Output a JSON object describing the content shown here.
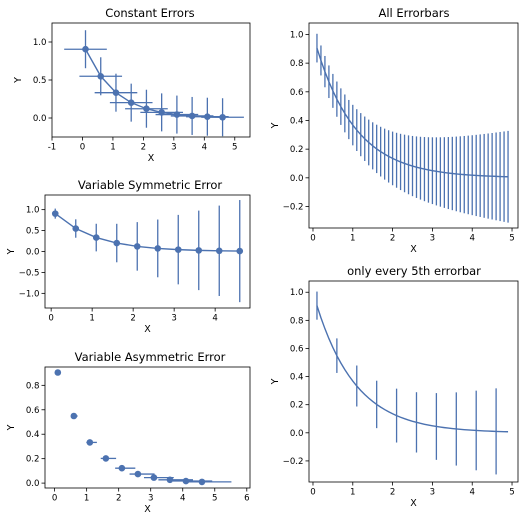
{
  "colors": {
    "series": "#4c72b0",
    "axes": "#000000",
    "background": "#ffffff"
  },
  "chart_data": [
    {
      "type": "errorbar",
      "title": "Constant Errors",
      "xlabel": "X",
      "ylabel": "Y",
      "xlim": [
        -1,
        5.5
      ],
      "ylim": [
        -0.25,
        1.25
      ],
      "xticks": [
        "-1",
        "0",
        "1",
        "2",
        "3",
        "4",
        "5"
      ],
      "yticks": [
        "0.0",
        "0.5",
        "1.0"
      ],
      "marker": "circle",
      "line": true,
      "grid": false,
      "series": [
        {
          "x": [
            0.1,
            0.6,
            1.1,
            1.6,
            2.1,
            2.6,
            3.1,
            3.6,
            4.1,
            4.6
          ],
          "y": [
            0.905,
            0.549,
            0.333,
            0.202,
            0.122,
            0.074,
            0.045,
            0.027,
            0.017,
            0.01
          ],
          "xerr": 0.7,
          "yerr": 0.25
        }
      ]
    },
    {
      "type": "errorbar",
      "title": "All Errorbars",
      "xlabel": "X",
      "ylabel": "Y",
      "xlim": [
        -0.1,
        5.15
      ],
      "ylim": [
        -0.35,
        1.08
      ],
      "xticks": [
        "0",
        "1",
        "2",
        "3",
        "4",
        "5"
      ],
      "yticks": [
        "−0.2",
        "0.0",
        "0.2",
        "0.4",
        "0.6",
        "0.8",
        "1.0"
      ],
      "marker": "none",
      "line": true,
      "grid": false,
      "series": [
        {
          "x_range": [
            0.1,
            4.9
          ],
          "x_step": 0.1,
          "y_formula": "exp(-x)",
          "yerr_range": [
            0.1,
            0.32
          ]
        }
      ]
    },
    {
      "type": "errorbar",
      "title": "Variable Symmetric Error",
      "xlabel": "X",
      "ylabel": "Y",
      "xlim": [
        -0.15,
        4.85
      ],
      "ylim": [
        -1.35,
        1.35
      ],
      "xticks": [
        "0",
        "1",
        "2",
        "3",
        "4"
      ],
      "yticks": [
        "−1.0",
        "−0.5",
        "0.0",
        "0.5",
        "1.0"
      ],
      "marker": "circle",
      "line": true,
      "grid": false,
      "series": [
        {
          "x": [
            0.1,
            0.6,
            1.1,
            1.6,
            2.1,
            2.6,
            3.1,
            3.6,
            4.1,
            4.6
          ],
          "y": [
            0.905,
            0.549,
            0.333,
            0.202,
            0.122,
            0.074,
            0.045,
            0.027,
            0.017,
            0.01
          ],
          "yerr": [
            0.12,
            0.22,
            0.33,
            0.46,
            0.58,
            0.69,
            0.83,
            0.95,
            1.08,
            1.22
          ]
        }
      ]
    },
    {
      "type": "errorbar",
      "title": "only every 5th errorbar",
      "xlabel": "X",
      "ylabel": "Y",
      "xlim": [
        -0.1,
        5.15
      ],
      "ylim": [
        -0.35,
        1.08
      ],
      "xticks": [
        "0",
        "1",
        "2",
        "3",
        "4",
        "5"
      ],
      "yticks": [
        "−0.2",
        "0.0",
        "0.2",
        "0.4",
        "0.6",
        "0.8",
        "1.0"
      ],
      "marker": "none",
      "line": true,
      "grid": false,
      "series": [
        {
          "x_range": [
            0.1,
            4.9
          ],
          "x_step": 0.1,
          "y_formula": "exp(-x)",
          "yerr_range": [
            0.1,
            0.32
          ],
          "errorevery": 5
        }
      ]
    },
    {
      "type": "errorbar",
      "title": "Variable Asymmetric Error",
      "xlabel": "X",
      "ylabel": "Y",
      "xlim": [
        -0.3,
        6.1
      ],
      "ylim": [
        -0.04,
        0.95
      ],
      "xticks": [
        "0",
        "1",
        "2",
        "3",
        "4",
        "5",
        "6"
      ],
      "yticks": [
        "0.0",
        "0.2",
        "0.4",
        "0.6",
        "0.8"
      ],
      "marker": "circle",
      "line": false,
      "grid": false,
      "series": [
        {
          "x": [
            0.1,
            0.6,
            1.1,
            1.6,
            2.1,
            2.6,
            3.1,
            3.6,
            4.1,
            4.6
          ],
          "y": [
            0.905,
            0.549,
            0.333,
            0.202,
            0.122,
            0.074,
            0.045,
            0.027,
            0.017,
            0.01
          ],
          "xerr_lower": [
            0.02,
            0.06,
            0.11,
            0.16,
            0.21,
            0.26,
            0.31,
            0.36,
            0.41,
            0.46
          ],
          "xerr_upper": [
            0.04,
            0.12,
            0.22,
            0.32,
            0.42,
            0.52,
            0.62,
            0.72,
            0.82,
            0.92
          ]
        }
      ]
    }
  ]
}
